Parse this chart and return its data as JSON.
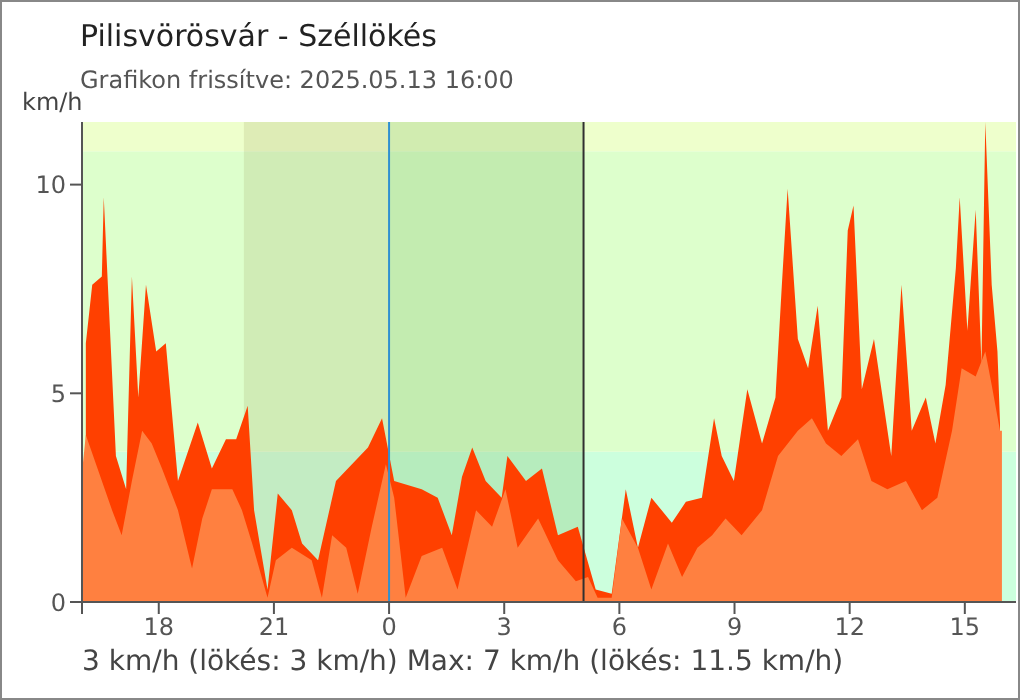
{
  "chart_data": {
    "type": "area",
    "title": "Pilisvörösvár - Széllökés",
    "subtitle": "Grafikon frissítve: 2025.05.13 16:00",
    "ylabel": "km/h",
    "annotations": [
      "3 km/h  (lökés: 3 km/h)  Max: 7 km/h (lökés: 11.5 km/h)"
    ],
    "xlim": [
      "2025-05-12T16:00",
      "2025-05-13T16:20"
    ],
    "ylim": [
      0,
      11.5
    ],
    "xticks": [
      {
        "value": "2025-05-12T16:00",
        "label": null
      },
      {
        "value": "2025-05-12T18:00",
        "label": "18"
      },
      {
        "value": "2025-05-12T21:00",
        "label": "21"
      },
      {
        "value": "2025-05-13T00:00",
        "label": "0"
      },
      {
        "value": "2025-05-13T03:00",
        "label": "3"
      },
      {
        "value": "2025-05-13T06:00",
        "label": "6"
      },
      {
        "value": "2025-05-13T09:00",
        "label": "9"
      },
      {
        "value": "2025-05-13T12:00",
        "label": "12"
      },
      {
        "value": "2025-05-13T15:00",
        "label": "15"
      }
    ],
    "yticks": [
      0,
      5,
      10
    ],
    "bands": [
      {
        "axis": "y",
        "from": 0,
        "to": 3.6,
        "color": "#ccffdd"
      },
      {
        "axis": "y",
        "from": 3.6,
        "to": 10.8,
        "color": "#ddffcc"
      },
      {
        "axis": "y",
        "from": 10.8,
        "to": 11.5,
        "color": "#eeffcc"
      },
      {
        "axis": "x",
        "from": "2025-05-12T20:13",
        "to": "2025-05-13T00:00",
        "color": "#a0a060"
      },
      {
        "axis": "x",
        "from": "2025-05-13T00:00",
        "to": "2025-05-13T05:04",
        "color": "#60a040"
      }
    ],
    "ref_lines": [
      {
        "axis": "x",
        "value": "2025-05-13T00:00",
        "color": "#3090d0"
      },
      {
        "axis": "x",
        "value": "2025-05-13T05:04",
        "color": "#303030"
      }
    ],
    "series": [
      {
        "color": "#ff4000",
        "x": [
          "2025-05-12T16:06",
          "2025-05-12T16:16",
          "2025-05-12T16:31",
          "2025-05-12T16:34",
          "2025-05-12T16:53",
          "2025-05-12T17:09",
          "2025-05-12T17:18",
          "2025-05-12T17:28",
          "2025-05-12T17:40",
          "2025-05-12T17:56",
          "2025-05-12T18:11",
          "2025-05-12T18:30",
          "2025-05-12T19:01",
          "2025-05-12T19:23",
          "2025-05-12T19:45",
          "2025-05-12T20:01",
          "2025-05-12T20:19",
          "2025-05-12T20:29",
          "2025-05-12T20:50",
          "2025-05-12T21:06",
          "2025-05-12T21:28",
          "2025-05-12T21:44",
          "2025-05-12T22:09",
          "2025-05-12T22:37",
          "2025-05-12T23:27",
          "2025-05-12T23:49",
          "2025-05-13T00:08",
          "2025-05-13T00:51",
          "2025-05-13T01:16",
          "2025-05-13T01:38",
          "2025-05-13T01:54",
          "2025-05-13T02:10",
          "2025-05-13T02:31",
          "2025-05-13T02:56",
          "2025-05-13T03:05",
          "2025-05-13T03:34",
          "2025-05-13T03:59",
          "2025-05-13T04:24",
          "2025-05-13T04:55",
          "2025-05-13T05:23",
          "2025-05-13T05:48",
          "2025-05-13T06:10",
          "2025-05-13T06:29",
          "2025-05-13T06:50",
          "2025-05-13T07:22",
          "2025-05-13T07:44",
          "2025-05-13T08:09",
          "2025-05-13T08:28",
          "2025-05-13T08:40",
          "2025-05-13T08:59",
          "2025-05-13T09:20",
          "2025-05-13T09:43",
          "2025-05-13T10:04",
          "2025-05-13T10:14",
          "2025-05-13T10:23",
          "2025-05-13T10:39",
          "2025-05-13T10:55",
          "2025-05-13T11:10",
          "2025-05-13T11:26",
          "2025-05-13T11:47",
          "2025-05-13T11:57",
          "2025-05-13T12:06",
          "2025-05-13T12:19",
          "2025-05-13T12:38",
          "2025-05-13T13:05",
          "2025-05-13T13:21",
          "2025-05-13T13:37",
          "2025-05-13T13:59",
          "2025-05-13T14:14",
          "2025-05-13T14:30",
          "2025-05-13T14:46",
          "2025-05-13T14:52",
          "2025-05-13T15:04",
          "2025-05-13T15:17",
          "2025-05-13T15:26",
          "2025-05-13T15:32",
          "2025-05-13T15:42",
          "2025-05-13T15:51",
          "2025-05-13T15:55"
        ],
        "values": [
          6.2,
          7.6,
          7.8,
          9.7,
          3.5,
          2.7,
          7.8,
          4.9,
          7.6,
          6.0,
          6.2,
          2.9,
          4.3,
          3.2,
          3.9,
          3.9,
          4.7,
          2.2,
          0.3,
          2.6,
          2.2,
          1.4,
          1.0,
          2.9,
          3.7,
          4.4,
          2.9,
          2.7,
          2.5,
          1.6,
          3.0,
          3.7,
          2.9,
          2.5,
          3.5,
          2.9,
          3.2,
          1.6,
          1.8,
          0.3,
          0.2,
          2.7,
          1.3,
          2.5,
          1.9,
          2.4,
          2.5,
          4.4,
          3.5,
          2.9,
          5.1,
          3.8,
          4.9,
          7.6,
          9.9,
          6.3,
          5.6,
          7.1,
          4.1,
          4.9,
          8.9,
          9.5,
          5.1,
          6.3,
          3.5,
          7.6,
          4.1,
          4.9,
          3.8,
          5.2,
          8.0,
          9.7,
          6.5,
          9.4,
          5.7,
          11.5,
          7.6,
          6.0,
          4.3
        ]
      },
      {
        "color": "#ff8040",
        "x": [
          "2025-05-12T16:00",
          "2025-05-12T16:06",
          "2025-05-12T16:47",
          "2025-05-12T17:02",
          "2025-05-12T17:18",
          "2025-05-12T17:34",
          "2025-05-12T17:49",
          "2025-05-12T18:05",
          "2025-05-12T18:30",
          "2025-05-12T18:52",
          "2025-05-12T19:08",
          "2025-05-12T19:23",
          "2025-05-12T19:55",
          "2025-05-12T20:10",
          "2025-05-12T20:26",
          "2025-05-12T20:50",
          "2025-05-12T21:03",
          "2025-05-12T21:28",
          "2025-05-12T21:59",
          "2025-05-12T22:15",
          "2025-05-12T22:31",
          "2025-05-12T22:53",
          "2025-05-12T23:11",
          "2025-05-12T23:33",
          "2025-05-12T23:55",
          "2025-05-13T00:08",
          "2025-05-13T00:26",
          "2025-05-13T00:51",
          "2025-05-13T01:23",
          "2025-05-13T01:47",
          "2025-05-13T02:16",
          "2025-05-13T02:41",
          "2025-05-13T03:02",
          "2025-05-13T03:21",
          "2025-05-13T03:53",
          "2025-05-13T04:24",
          "2025-05-13T04:52",
          "2025-05-13T05:11",
          "2025-05-13T05:26",
          "2025-05-13T05:48",
          "2025-05-13T06:04",
          "2025-05-13T06:29",
          "2025-05-13T06:50",
          "2025-05-13T07:16",
          "2025-05-13T07:38",
          "2025-05-13T08:02",
          "2025-05-13T08:25",
          "2025-05-13T08:46",
          "2025-05-13T09:11",
          "2025-05-13T09:43",
          "2025-05-13T10:08",
          "2025-05-13T10:39",
          "2025-05-13T11:01",
          "2025-05-13T11:23",
          "2025-05-13T11:47",
          "2025-05-13T12:13",
          "2025-05-13T12:34",
          "2025-05-13T12:59",
          "2025-05-13T13:28",
          "2025-05-13T13:53",
          "2025-05-13T14:17",
          "2025-05-13T14:40",
          "2025-05-13T14:55",
          "2025-05-13T15:17",
          "2025-05-13T15:32",
          "2025-05-13T15:42",
          "2025-05-13T15:55",
          "2025-05-13T15:58"
        ],
        "values": [
          3.1,
          4.0,
          2.2,
          1.6,
          2.9,
          4.1,
          3.8,
          3.2,
          2.2,
          0.8,
          2.0,
          2.7,
          2.7,
          2.2,
          1.4,
          0.1,
          1.0,
          1.3,
          1.0,
          0.1,
          1.6,
          1.3,
          0.2,
          1.8,
          3.3,
          2.5,
          0.1,
          1.1,
          1.3,
          0.3,
          2.2,
          1.8,
          2.7,
          1.3,
          2.0,
          1.0,
          0.5,
          0.6,
          0.1,
          0.1,
          2.0,
          1.3,
          0.3,
          1.4,
          0.6,
          1.3,
          1.6,
          2.0,
          1.6,
          2.2,
          3.5,
          4.1,
          4.4,
          3.8,
          3.5,
          3.9,
          2.9,
          2.7,
          2.9,
          2.2,
          2.5,
          4.1,
          5.6,
          5.4,
          6.0,
          5.2,
          4.1,
          4.1
        ]
      }
    ]
  }
}
